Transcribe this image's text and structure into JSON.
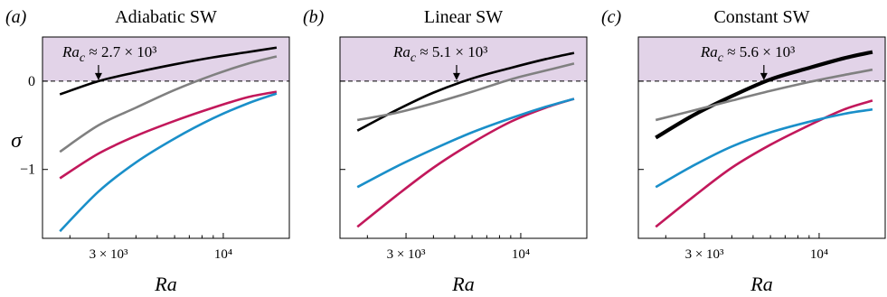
{
  "figure": {
    "ylabel": "σ",
    "xlabel": "Ra",
    "colors": {
      "shade": "#e2d3e8",
      "black": "#000000",
      "gray": "#808080",
      "magenta": "#c2185b",
      "blue": "#1a8fc9",
      "axis": "#000000"
    }
  },
  "chart_data": [
    {
      "type": "line",
      "panel_letter": "(a)",
      "title": "Adiabatic SW",
      "xlabel": "Ra",
      "ylabel": "σ",
      "xscale": "log",
      "xlim": [
        1500,
        20000
      ],
      "ylim": [
        -1.78,
        0.5
      ],
      "xticks": [
        3000,
        10000
      ],
      "xtick_labels": [
        "3 × 10³",
        "10⁴"
      ],
      "yticks": [
        0,
        -1
      ],
      "ytick_labels": [
        "0",
        "−1"
      ],
      "unstable_shading": "σ > 0",
      "annotation": {
        "text": "Ra_c ≈ 2.7 × 10³",
        "x": 2700,
        "y": 0
      },
      "series": [
        {
          "color": "black",
          "width": 2.6,
          "x": [
            1800,
            2700,
            4000,
            6000,
            9000,
            13000,
            17500
          ],
          "y": [
            -0.15,
            0.0,
            0.1,
            0.19,
            0.27,
            0.33,
            0.38
          ]
        },
        {
          "color": "gray",
          "width": 2.6,
          "x": [
            1800,
            2700,
            4000,
            6000,
            9000,
            13000,
            17500
          ],
          "y": [
            -0.8,
            -0.5,
            -0.3,
            -0.1,
            0.07,
            0.2,
            0.28
          ]
        },
        {
          "color": "magenta",
          "width": 2.6,
          "x": [
            1800,
            2700,
            4000,
            6000,
            9000,
            13000,
            17500
          ],
          "y": [
            -1.1,
            -0.82,
            -0.62,
            -0.45,
            -0.3,
            -0.18,
            -0.12
          ]
        },
        {
          "color": "blue",
          "width": 2.6,
          "x": [
            1800,
            2700,
            4000,
            6000,
            9000,
            13000,
            17500
          ],
          "y": [
            -1.7,
            -1.25,
            -0.92,
            -0.65,
            -0.42,
            -0.25,
            -0.14
          ]
        }
      ]
    },
    {
      "type": "line",
      "panel_letter": "(b)",
      "title": "Linear SW",
      "xlabel": "Ra",
      "xscale": "log",
      "xlim": [
        1500,
        20000
      ],
      "ylim": [
        -1.78,
        0.5
      ],
      "xticks": [
        3000,
        10000
      ],
      "xtick_labels": [
        "3 × 10³",
        "10⁴"
      ],
      "yticks": [
        0,
        -1
      ],
      "ytick_labels": [
        "",
        ""
      ],
      "unstable_shading": "σ > 0",
      "annotation": {
        "text": "Ra_c ≈ 5.1 × 10³",
        "x": 5100,
        "y": 0
      },
      "series": [
        {
          "color": "black",
          "width": 2.6,
          "x": [
            1800,
            2700,
            4000,
            6000,
            9000,
            13000,
            17500
          ],
          "y": [
            -0.56,
            -0.33,
            -0.13,
            0.03,
            0.15,
            0.25,
            0.32
          ]
        },
        {
          "color": "gray",
          "width": 2.6,
          "x": [
            1800,
            2700,
            4000,
            6000,
            9000,
            13000,
            17500
          ],
          "y": [
            -0.44,
            -0.36,
            -0.25,
            -0.12,
            0.02,
            0.12,
            0.2
          ]
        },
        {
          "color": "magenta",
          "width": 2.6,
          "x": [
            1800,
            2700,
            4000,
            6000,
            9000,
            13000,
            17500
          ],
          "y": [
            -1.65,
            -1.3,
            -0.98,
            -0.7,
            -0.46,
            -0.3,
            -0.2
          ]
        },
        {
          "color": "blue",
          "width": 2.6,
          "x": [
            1800,
            2700,
            4000,
            6000,
            9000,
            13000,
            17500
          ],
          "y": [
            -1.2,
            -0.97,
            -0.77,
            -0.58,
            -0.42,
            -0.29,
            -0.2
          ]
        }
      ]
    },
    {
      "type": "line",
      "panel_letter": "(c)",
      "title": "Constant SW",
      "xlabel": "Ra",
      "xscale": "log",
      "xlim": [
        1500,
        20000
      ],
      "ylim": [
        -1.78,
        0.5
      ],
      "xticks": [
        3000,
        10000
      ],
      "xtick_labels": [
        "3 × 10³",
        "10⁴"
      ],
      "yticks": [
        0,
        -1
      ],
      "ytick_labels": [
        "",
        ""
      ],
      "unstable_shading": "σ > 0",
      "annotation": {
        "text": "Ra_c ≈ 5.6 × 10³",
        "x": 5600,
        "y": 0
      },
      "series": [
        {
          "color": "black",
          "width": 4.2,
          "x": [
            1800,
            2700,
            4000,
            6000,
            9000,
            13000,
            17500
          ],
          "y": [
            -0.64,
            -0.38,
            -0.17,
            0.02,
            0.15,
            0.26,
            0.33
          ]
        },
        {
          "color": "gray",
          "width": 2.6,
          "x": [
            1800,
            2700,
            4000,
            6000,
            9000,
            13000,
            17500
          ],
          "y": [
            -0.44,
            -0.33,
            -0.22,
            -0.11,
            -0.01,
            0.07,
            0.13
          ]
        },
        {
          "color": "magenta",
          "width": 2.6,
          "x": [
            1800,
            2700,
            4000,
            6000,
            9000,
            13000,
            17500
          ],
          "y": [
            -1.65,
            -1.3,
            -0.98,
            -0.72,
            -0.5,
            -0.32,
            -0.22
          ]
        },
        {
          "color": "blue",
          "width": 2.6,
          "x": [
            1800,
            2700,
            4000,
            6000,
            9000,
            13000,
            17500
          ],
          "y": [
            -1.2,
            -0.95,
            -0.74,
            -0.58,
            -0.46,
            -0.37,
            -0.32
          ]
        }
      ]
    }
  ]
}
